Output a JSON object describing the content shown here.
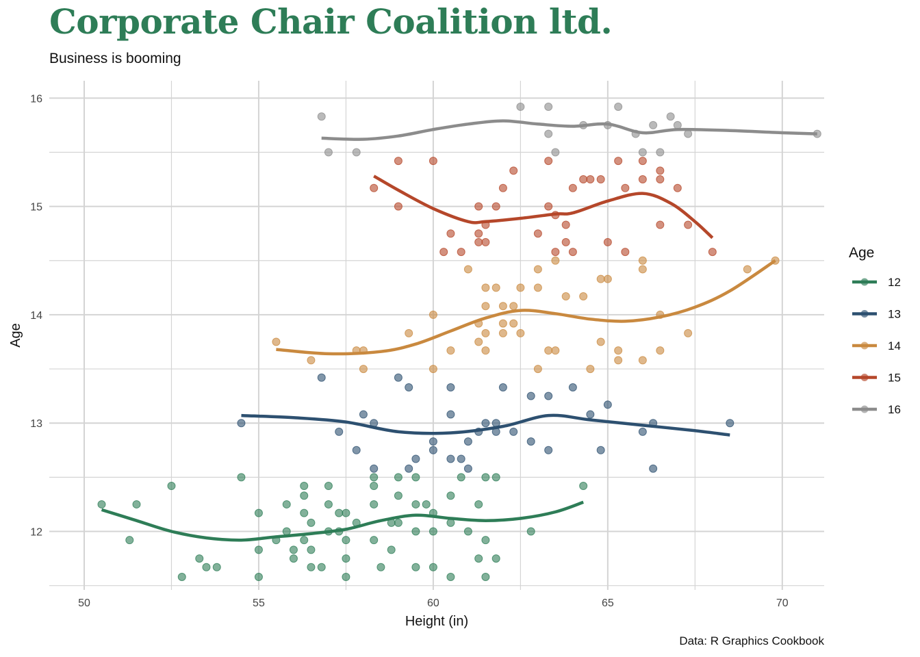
{
  "header": {
    "title": "Corporate Chair Coalition ltd.",
    "subtitle": "Business is booming"
  },
  "caption": "Data: R Graphics Cookbook",
  "chart_data": {
    "type": "scatter",
    "title": "Corporate Chair Coalition ltd.",
    "subtitle": "Business is booming",
    "xlabel": "Height (in)",
    "ylabel": "Age",
    "xlim": [
      49,
      71.2
    ],
    "ylim": [
      11.46,
      16.16
    ],
    "x_ticks": [
      50,
      55,
      60,
      65,
      70
    ],
    "y_ticks": [
      12,
      13,
      14,
      15,
      16
    ],
    "grid": true,
    "legend": {
      "title": "Age",
      "position": "right"
    },
    "series": [
      {
        "name": "12",
        "color": "#2e7d57",
        "points": [
          [
            50.5,
            12.25
          ],
          [
            51.3,
            11.92
          ],
          [
            51.5,
            12.25
          ],
          [
            52.5,
            12.42
          ],
          [
            52.8,
            11.58
          ],
          [
            53.3,
            11.75
          ],
          [
            53.5,
            11.67
          ],
          [
            53.8,
            11.67
          ],
          [
            54.5,
            12.5
          ],
          [
            55,
            12.17
          ],
          [
            55,
            11.83
          ],
          [
            55,
            11.58
          ],
          [
            55.5,
            11.92
          ],
          [
            55.8,
            12.25
          ],
          [
            55.8,
            12.0
          ],
          [
            56,
            11.83
          ],
          [
            56,
            11.75
          ],
          [
            56.3,
            11.92
          ],
          [
            56.3,
            12.17
          ],
          [
            56.3,
            12.42
          ],
          [
            56.3,
            12.33
          ],
          [
            56.5,
            11.83
          ],
          [
            56.5,
            12.08
          ],
          [
            56.5,
            11.67
          ],
          [
            56.8,
            11.67
          ],
          [
            57,
            12.25
          ],
          [
            57,
            12.42
          ],
          [
            57,
            12.0
          ],
          [
            57.3,
            12.17
          ],
          [
            57.3,
            12.0
          ],
          [
            57.5,
            12.17
          ],
          [
            57.5,
            11.92
          ],
          [
            57.5,
            11.75
          ],
          [
            57.5,
            11.58
          ],
          [
            57.8,
            12.08
          ],
          [
            58.3,
            12.5
          ],
          [
            58.3,
            12.42
          ],
          [
            58.3,
            12.25
          ],
          [
            58.3,
            11.92
          ],
          [
            58.5,
            11.67
          ],
          [
            58.8,
            12.08
          ],
          [
            58.8,
            11.83
          ],
          [
            59,
            12.5
          ],
          [
            59,
            12.33
          ],
          [
            59,
            12.08
          ],
          [
            59.5,
            12.5
          ],
          [
            59.5,
            12.25
          ],
          [
            59.5,
            12.0
          ],
          [
            59.5,
            11.67
          ],
          [
            59.8,
            12.25
          ],
          [
            60,
            12.17
          ],
          [
            60,
            12.0
          ],
          [
            60,
            11.67
          ],
          [
            60.5,
            12.33
          ],
          [
            60.5,
            12.08
          ],
          [
            60.5,
            11.58
          ],
          [
            60.8,
            12.5
          ],
          [
            61,
            12.0
          ],
          [
            61.5,
            12.5
          ],
          [
            61.3,
            12.25
          ],
          [
            61.3,
            11.75
          ],
          [
            61.5,
            11.92
          ],
          [
            61.5,
            11.58
          ],
          [
            61.8,
            12.5
          ],
          [
            61.8,
            11.75
          ],
          [
            62.8,
            12.0
          ],
          [
            64.3,
            12.42
          ]
        ],
        "smooth": [
          [
            50.5,
            12.2
          ],
          [
            51.5,
            12.1
          ],
          [
            52.5,
            12.0
          ],
          [
            53.5,
            11.94
          ],
          [
            54.5,
            11.92
          ],
          [
            55.5,
            11.95
          ],
          [
            56.5,
            11.98
          ],
          [
            57.5,
            12.02
          ],
          [
            58.5,
            12.1
          ],
          [
            59.5,
            12.15
          ],
          [
            60.5,
            12.12
          ],
          [
            61.5,
            12.1
          ],
          [
            62.5,
            12.12
          ],
          [
            63.5,
            12.18
          ],
          [
            64.3,
            12.27
          ]
        ]
      },
      {
        "name": "13",
        "color": "#2d5070",
        "points": [
          [
            54.5,
            13.0
          ],
          [
            56.8,
            13.42
          ],
          [
            57.3,
            12.92
          ],
          [
            57.8,
            12.75
          ],
          [
            58,
            13.08
          ],
          [
            58.3,
            13.0
          ],
          [
            58.3,
            12.58
          ],
          [
            59,
            13.42
          ],
          [
            59.3,
            13.33
          ],
          [
            59.3,
            12.58
          ],
          [
            59.5,
            12.67
          ],
          [
            60,
            12.83
          ],
          [
            60,
            12.75
          ],
          [
            60.5,
            13.33
          ],
          [
            60.5,
            13.08
          ],
          [
            60.5,
            12.67
          ],
          [
            60.8,
            12.67
          ],
          [
            61,
            12.83
          ],
          [
            61,
            12.58
          ],
          [
            61.3,
            12.92
          ],
          [
            61.5,
            13.0
          ],
          [
            61.8,
            13.0
          ],
          [
            61.8,
            12.92
          ],
          [
            62,
            13.33
          ],
          [
            62.3,
            12.92
          ],
          [
            62.8,
            13.25
          ],
          [
            62.8,
            12.83
          ],
          [
            63.3,
            13.25
          ],
          [
            63.3,
            12.75
          ],
          [
            64,
            13.33
          ],
          [
            64.5,
            13.08
          ],
          [
            64.8,
            12.75
          ],
          [
            65,
            13.17
          ],
          [
            66,
            12.92
          ],
          [
            66.3,
            13.0
          ],
          [
            66.3,
            12.58
          ],
          [
            68.5,
            13.0
          ]
        ],
        "smooth": [
          [
            54.5,
            13.07
          ],
          [
            56,
            13.05
          ],
          [
            57.5,
            13.01
          ],
          [
            59,
            12.92
          ],
          [
            60.5,
            12.91
          ],
          [
            62,
            12.97
          ],
          [
            63.3,
            13.07
          ],
          [
            64.5,
            13.03
          ],
          [
            66,
            12.98
          ],
          [
            67.5,
            12.93
          ],
          [
            68.5,
            12.89
          ]
        ]
      },
      {
        "name": "14",
        "color": "#c9893f",
        "points": [
          [
            55.5,
            13.75
          ],
          [
            56.5,
            13.58
          ],
          [
            57.8,
            13.67
          ],
          [
            58,
            13.67
          ],
          [
            58,
            13.5
          ],
          [
            59.3,
            13.83
          ],
          [
            60,
            14.0
          ],
          [
            60,
            13.5
          ],
          [
            60.5,
            13.67
          ],
          [
            61,
            14.42
          ],
          [
            61.3,
            13.92
          ],
          [
            61.3,
            13.75
          ],
          [
            61.5,
            14.25
          ],
          [
            61.5,
            14.08
          ],
          [
            61.5,
            13.83
          ],
          [
            61.5,
            13.67
          ],
          [
            61.8,
            14.25
          ],
          [
            62,
            14.08
          ],
          [
            62,
            13.92
          ],
          [
            62,
            13.83
          ],
          [
            62.3,
            14.08
          ],
          [
            62.3,
            13.92
          ],
          [
            62.5,
            14.25
          ],
          [
            62.5,
            13.83
          ],
          [
            63,
            14.42
          ],
          [
            63,
            14.25
          ],
          [
            63,
            13.5
          ],
          [
            63.3,
            13.67
          ],
          [
            63.5,
            14.5
          ],
          [
            63.5,
            13.67
          ],
          [
            63.8,
            14.17
          ],
          [
            64.3,
            14.17
          ],
          [
            64.5,
            13.5
          ],
          [
            64.8,
            14.33
          ],
          [
            64.8,
            13.75
          ],
          [
            65,
            14.33
          ],
          [
            65.3,
            13.67
          ],
          [
            65.3,
            13.58
          ],
          [
            66,
            14.5
          ],
          [
            66,
            14.42
          ],
          [
            66,
            13.58
          ],
          [
            66.5,
            14.0
          ],
          [
            66.5,
            13.67
          ],
          [
            67.3,
            13.83
          ],
          [
            69,
            14.42
          ],
          [
            69.8,
            14.5
          ]
        ],
        "smooth": [
          [
            55.5,
            13.68
          ],
          [
            57,
            13.64
          ],
          [
            58.5,
            13.66
          ],
          [
            59.5,
            13.73
          ],
          [
            60.5,
            13.85
          ],
          [
            61.5,
            13.97
          ],
          [
            62.5,
            14.04
          ],
          [
            63.5,
            14.01
          ],
          [
            64.5,
            13.96
          ],
          [
            65.5,
            13.94
          ],
          [
            66.5,
            13.98
          ],
          [
            67.5,
            14.07
          ],
          [
            68.5,
            14.22
          ],
          [
            69.8,
            14.5
          ]
        ]
      },
      {
        "name": "15",
        "color": "#b5472a",
        "points": [
          [
            58.3,
            15.17
          ],
          [
            59,
            15.42
          ],
          [
            59,
            15.0
          ],
          [
            60,
            15.42
          ],
          [
            60.3,
            14.58
          ],
          [
            60.5,
            14.75
          ],
          [
            60.8,
            14.58
          ],
          [
            61.3,
            15.0
          ],
          [
            61.3,
            14.75
          ],
          [
            61.3,
            14.67
          ],
          [
            61.5,
            14.83
          ],
          [
            61.5,
            14.67
          ],
          [
            61.8,
            15.0
          ],
          [
            62,
            15.17
          ],
          [
            62.3,
            15.33
          ],
          [
            63,
            14.75
          ],
          [
            63.3,
            15.42
          ],
          [
            63.3,
            15.0
          ],
          [
            63.5,
            14.92
          ],
          [
            63.5,
            14.58
          ],
          [
            63.8,
            14.83
          ],
          [
            63.8,
            14.67
          ],
          [
            64,
            15.17
          ],
          [
            64,
            14.58
          ],
          [
            64.3,
            15.25
          ],
          [
            64.5,
            15.25
          ],
          [
            64.8,
            15.25
          ],
          [
            65,
            14.67
          ],
          [
            65.3,
            15.42
          ],
          [
            65.5,
            15.17
          ],
          [
            65.5,
            14.58
          ],
          [
            66,
            15.25
          ],
          [
            66,
            15.42
          ],
          [
            66.5,
            15.33
          ],
          [
            66.5,
            15.25
          ],
          [
            66.5,
            14.83
          ],
          [
            67,
            15.17
          ],
          [
            67.3,
            14.83
          ],
          [
            68,
            14.58
          ]
        ],
        "smooth": [
          [
            58.3,
            15.28
          ],
          [
            59,
            15.15
          ],
          [
            60,
            14.98
          ],
          [
            61,
            14.86
          ],
          [
            61.5,
            14.86
          ],
          [
            62.5,
            14.89
          ],
          [
            63.5,
            14.93
          ],
          [
            64,
            14.94
          ],
          [
            65,
            15.05
          ],
          [
            66,
            15.12
          ],
          [
            66.8,
            15.03
          ],
          [
            67.5,
            14.86
          ],
          [
            68,
            14.71
          ]
        ]
      },
      {
        "name": "16",
        "color": "#8c8c8c",
        "points": [
          [
            56.8,
            15.83
          ],
          [
            57,
            15.5
          ],
          [
            57.8,
            15.5
          ],
          [
            62.5,
            15.92
          ],
          [
            63.3,
            15.92
          ],
          [
            63.3,
            15.67
          ],
          [
            63.5,
            15.5
          ],
          [
            64.3,
            15.75
          ],
          [
            65,
            15.75
          ],
          [
            65.3,
            15.92
          ],
          [
            65.8,
            15.67
          ],
          [
            66,
            15.5
          ],
          [
            66.3,
            15.75
          ],
          [
            66.5,
            15.5
          ],
          [
            66.8,
            15.83
          ],
          [
            67,
            15.75
          ],
          [
            67.3,
            15.67
          ],
          [
            71,
            15.67
          ]
        ],
        "smooth": [
          [
            56.8,
            15.63
          ],
          [
            58,
            15.62
          ],
          [
            59,
            15.65
          ],
          [
            60,
            15.71
          ],
          [
            61,
            15.76
          ],
          [
            62,
            15.79
          ],
          [
            63,
            15.76
          ],
          [
            64,
            15.74
          ],
          [
            65,
            15.76
          ],
          [
            66,
            15.68
          ],
          [
            67,
            15.71
          ],
          [
            68.5,
            15.7
          ],
          [
            70,
            15.68
          ],
          [
            71,
            15.67
          ]
        ]
      }
    ]
  }
}
